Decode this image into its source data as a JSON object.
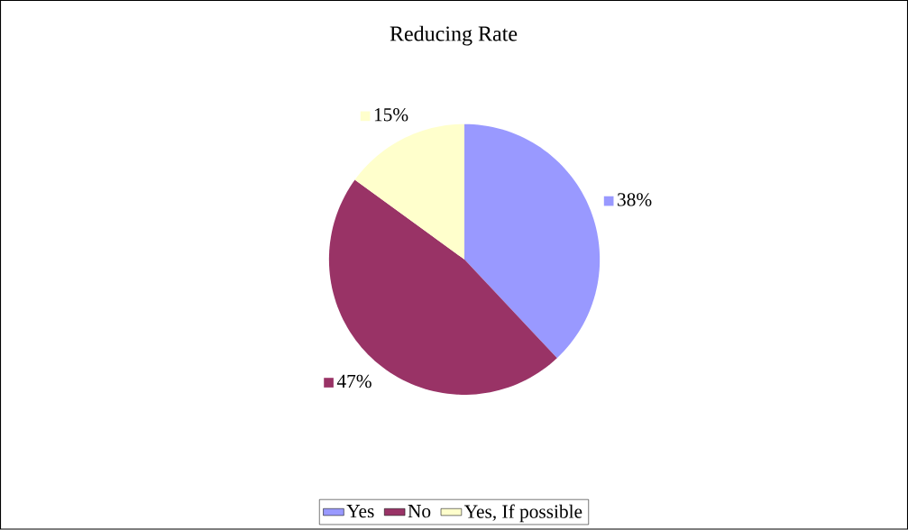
{
  "chart_data": {
    "type": "pie",
    "title": "Reducing Rate",
    "categories": [
      "Yes",
      "No",
      "Yes, If possible"
    ],
    "values": [
      38,
      47,
      15
    ],
    "colors": [
      "#9999ff",
      "#993366",
      "#ffffcc"
    ],
    "value_labels": [
      "38%",
      "47%",
      "15%"
    ],
    "legend": "bottom"
  }
}
